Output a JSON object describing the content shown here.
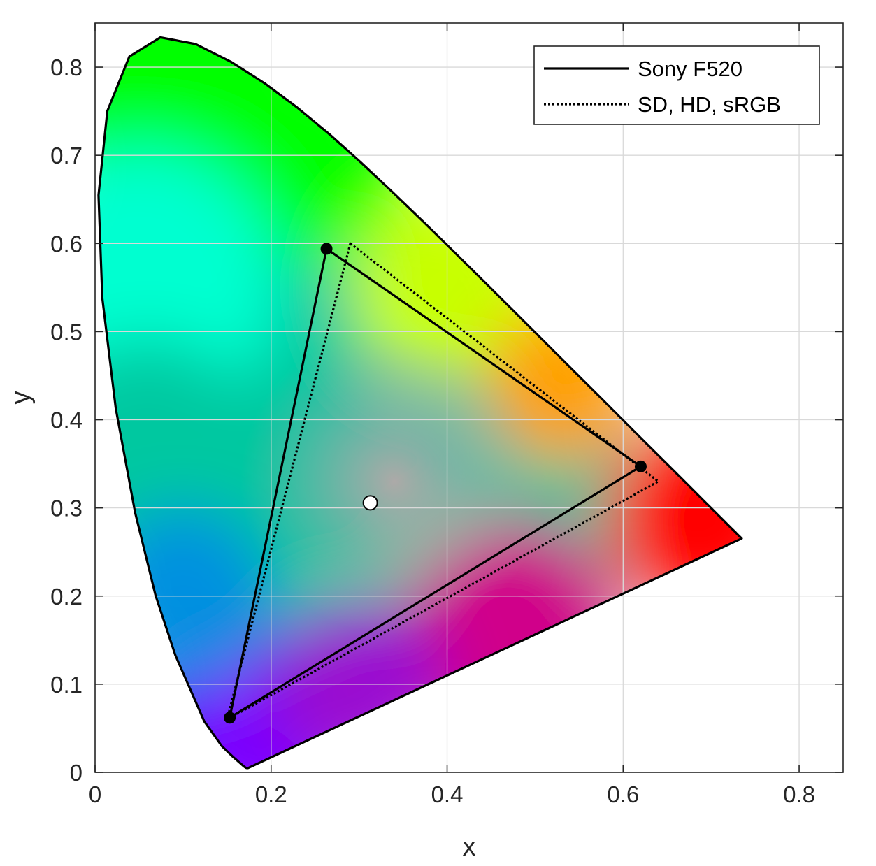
{
  "chart_data": {
    "type": "scatter",
    "xlabel": "x",
    "ylabel": "y",
    "xlim": [
      0,
      0.85
    ],
    "ylim": [
      0,
      0.85
    ],
    "xticks": [
      0,
      0.2,
      0.4,
      0.6,
      0.8
    ],
    "yticks": [
      0,
      0.1,
      0.2,
      0.3,
      0.4,
      0.5,
      0.6,
      0.7,
      0.8
    ],
    "xtick_labels": [
      "0",
      "0.2",
      "0.4",
      "0.6",
      "0.8"
    ],
    "ytick_labels": [
      "0",
      "0.1",
      "0.2",
      "0.3",
      "0.4",
      "0.5",
      "0.6",
      "0.7",
      "0.8"
    ],
    "grid": true,
    "legend_position": "top-right",
    "spectral_locus": {
      "x": [
        0.1741,
        0.1738,
        0.1736,
        0.1733,
        0.1726,
        0.1714,
        0.1689,
        0.1644,
        0.1566,
        0.144,
        0.1241,
        0.0913,
        0.0687,
        0.0454,
        0.0235,
        0.0082,
        0.0039,
        0.0139,
        0.0389,
        0.0743,
        0.1142,
        0.1547,
        0.1929,
        0.2296,
        0.2658,
        0.3016,
        0.3373,
        0.3731,
        0.4087,
        0.4441,
        0.4788,
        0.5125,
        0.5448,
        0.5752,
        0.6029,
        0.627,
        0.6482,
        0.6658,
        0.6801,
        0.6915,
        0.7006,
        0.7079,
        0.714,
        0.719,
        0.723,
        0.726,
        0.7283,
        0.73,
        0.7311,
        0.732,
        0.7347
      ],
      "y": [
        0.005,
        0.0049,
        0.0048,
        0.0048,
        0.0048,
        0.0051,
        0.0069,
        0.0109,
        0.0177,
        0.0297,
        0.0578,
        0.1327,
        0.2007,
        0.295,
        0.4127,
        0.5384,
        0.6548,
        0.7502,
        0.812,
        0.8338,
        0.8262,
        0.8059,
        0.7816,
        0.7543,
        0.7243,
        0.6923,
        0.6589,
        0.6245,
        0.5896,
        0.5547,
        0.5202,
        0.4866,
        0.4544,
        0.4242,
        0.3965,
        0.3725,
        0.3514,
        0.334,
        0.3197,
        0.3083,
        0.2993,
        0.292,
        0.2859,
        0.2809,
        0.277,
        0.274,
        0.2717,
        0.27,
        0.2689,
        0.268,
        0.2653
      ]
    },
    "series": [
      {
        "name": "Sony F520",
        "style": "solid",
        "points": [
          {
            "x": 0.263,
            "y": 0.594
          },
          {
            "x": 0.62,
            "y": 0.347
          },
          {
            "x": 0.153,
            "y": 0.062
          }
        ],
        "markers": true
      },
      {
        "name": "SD, HD, sRGB",
        "style": "dotted",
        "points": [
          {
            "x": 0.29,
            "y": 0.6
          },
          {
            "x": 0.64,
            "y": 0.33
          },
          {
            "x": 0.15,
            "y": 0.06
          }
        ],
        "markers": false
      }
    ],
    "white_point": {
      "x": 0.3127,
      "y": 0.3058
    },
    "colors": {
      "red": "#ff0000",
      "green": "#00ff00",
      "blue": "#0000ff",
      "violet": "#7a00ff",
      "cyan": "#00ffd0",
      "teal": "#00c8a0",
      "yellow": "#c8ff00",
      "orange": "#ffa000",
      "magenta": "#d0008a",
      "white_center": "#b5a8a8",
      "outline": "#000000",
      "grid": "#d9d9d9",
      "axis": "#262626"
    }
  }
}
